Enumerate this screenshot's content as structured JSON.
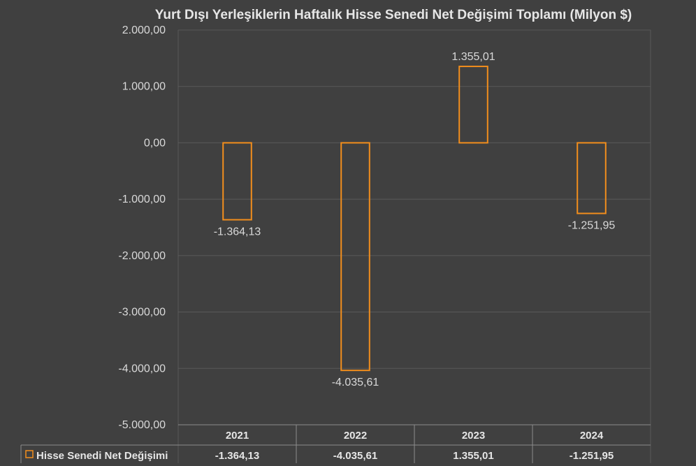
{
  "colors": {
    "background": "#404040",
    "bar_stroke": "#f28e1c",
    "grid": "#595959",
    "text": "#d9d9d9"
  },
  "chart_data": {
    "type": "bar",
    "title": "Yurt Dışı Yerleşiklerin Haftalık Hisse Senedi Net Değişimi Toplamı (Milyon $)",
    "categories": [
      "2021",
      "2022",
      "2023",
      "2024"
    ],
    "series": [
      {
        "name": "Hisse Senedi Net Değişimi",
        "values": [
          -1364.13,
          -4035.61,
          1355.01,
          -1251.95
        ],
        "labels": [
          "-1.364,13",
          "-4.035,61",
          "1.355,01",
          "-1.251,95"
        ],
        "table_labels": [
          "-1.364,13",
          "-4.035,61",
          "1.355,01",
          "-1.251,95"
        ]
      }
    ],
    "ylim": [
      -5000,
      2000
    ],
    "yticks": [
      2000,
      1000,
      0,
      -1000,
      -2000,
      -3000,
      -4000,
      -5000
    ],
    "ytick_labels": [
      "2.000,00",
      "1.000,00",
      "0,00",
      "-1.000,00",
      "-2.000,00",
      "-3.000,00",
      "-4.000,00",
      "-5.000,00"
    ],
    "grid": true,
    "legend_position": "data-table-left",
    "data_table": true
  }
}
